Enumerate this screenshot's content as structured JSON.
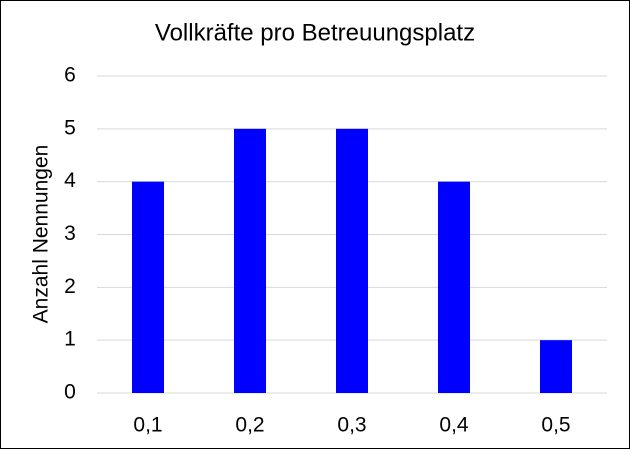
{
  "chart_data": {
    "type": "bar",
    "title": "Vollkräfte pro Betreuungsplatz",
    "y_label": "Anzahl Nennungen",
    "categories": [
      "0,1",
      "0,2",
      "0,3",
      "0,4",
      "0,5"
    ],
    "values": [
      4,
      5,
      5,
      4,
      1
    ],
    "color": "#0000ff",
    "ylim": [
      0,
      6
    ],
    "yticks": [
      0,
      1,
      2,
      3,
      4,
      5,
      6
    ],
    "grid": true
  }
}
